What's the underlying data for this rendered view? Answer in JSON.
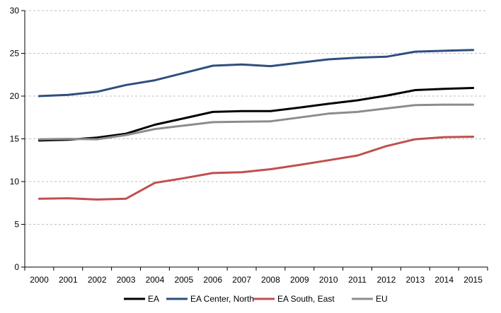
{
  "chart_data": {
    "type": "line",
    "x": [
      "2000",
      "2001",
      "2002",
      "2003",
      "2004",
      "2005",
      "2006",
      "2007",
      "2008",
      "2009",
      "2010",
      "2011",
      "2012",
      "2013",
      "2014",
      "2015"
    ],
    "ylim": [
      0,
      30
    ],
    "yticks": [
      0,
      5,
      10,
      15,
      20,
      25,
      30
    ],
    "grid": "horizontal dashed",
    "legend_position": "bottom",
    "series": [
      {
        "name": "EA",
        "color": "#000000",
        "values": [
          14.8,
          14.9,
          15.15,
          15.6,
          16.65,
          17.4,
          18.15,
          18.25,
          18.25,
          18.65,
          19.1,
          19.5,
          20.05,
          20.7,
          20.85,
          20.95
        ]
      },
      {
        "name": "EA Center, North",
        "color": "#2E4F7F",
        "values": [
          20.0,
          20.15,
          20.5,
          21.3,
          21.85,
          22.7,
          23.55,
          23.7,
          23.5,
          23.9,
          24.3,
          24.5,
          24.6,
          25.2,
          25.3,
          25.4
        ]
      },
      {
        "name": "EA South, East",
        "color": "#C0504D",
        "values": [
          8.0,
          8.05,
          7.9,
          8.0,
          9.85,
          10.4,
          11.0,
          11.1,
          11.45,
          11.95,
          12.5,
          13.05,
          14.15,
          14.95,
          15.2,
          15.25
        ]
      },
      {
        "name": "EU",
        "color": "#8C8C8C",
        "values": [
          14.95,
          15.0,
          14.95,
          15.45,
          16.15,
          16.55,
          16.95,
          17.0,
          17.05,
          17.5,
          17.95,
          18.15,
          18.55,
          18.95,
          19.0,
          19.0
        ]
      }
    ]
  }
}
